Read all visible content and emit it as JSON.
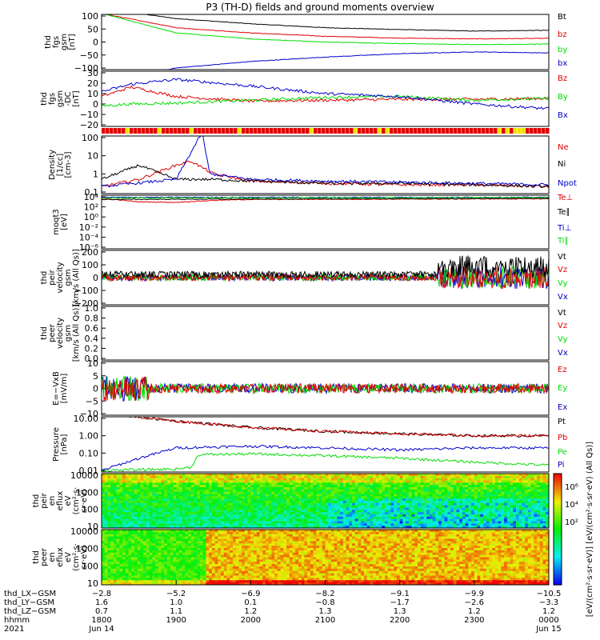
{
  "title": "P3 (TH-D) fields and ground moments overview",
  "colors": {
    "black": "#000000",
    "red": "#e00000",
    "green": "#00dd00",
    "blue": "#0000cc",
    "yellow": "#f0e000"
  },
  "chart_data": [
    {
      "id": "p1",
      "type": "line",
      "ylabel": [
        "thd",
        "fgs",
        "gsm",
        "[nT]"
      ],
      "yticks": [
        "100",
        "50",
        "0",
        "−50",
        "−100"
      ],
      "ylim": [
        -100,
        100
      ],
      "series": [
        {
          "name": "Bt",
          "color": "black",
          "x": [
            1800,
            1900,
            2000,
            2100,
            2200,
            2300,
            2400
          ],
          "y": [
            130,
            90,
            70,
            55,
            48,
            42,
            45
          ]
        },
        {
          "name": "bz",
          "color": "red",
          "x": [
            1800,
            1900,
            2000,
            2100,
            2200,
            2300,
            2400
          ],
          "y": [
            110,
            55,
            35,
            22,
            15,
            12,
            14
          ]
        },
        {
          "name": "by",
          "color": "green",
          "x": [
            1800,
            1900,
            2000,
            2100,
            2200,
            2300,
            2400
          ],
          "y": [
            110,
            35,
            12,
            0,
            -6,
            -10,
            -8
          ]
        },
        {
          "name": "bx",
          "color": "blue",
          "x": [
            1800,
            1900,
            2000,
            2100,
            2200,
            2300,
            2400
          ],
          "y": [
            -150,
            -100,
            -75,
            -58,
            -45,
            -38,
            -42
          ]
        }
      ]
    },
    {
      "id": "p2",
      "type": "line",
      "ylabel": [
        "thd",
        "fgs",
        "gsm",
        "-DC",
        "[nT]"
      ],
      "yticks": [
        "30",
        "20",
        "10",
        "0",
        "−10",
        "−20"
      ],
      "ylim": [
        -25,
        30
      ],
      "series": [
        {
          "name": "Bz",
          "color": "red",
          "x": [
            1800,
            1840,
            1900,
            2000,
            2100,
            2200,
            2300,
            2400
          ],
          "y": [
            5,
            15,
            5,
            0,
            1,
            2,
            2,
            3
          ]
        },
        {
          "name": "By",
          "color": "green",
          "x": [
            1800,
            1840,
            1900,
            2000,
            2100,
            2200,
            2300,
            2400
          ],
          "y": [
            -5,
            -3,
            -2,
            1,
            4,
            5,
            1,
            3
          ]
        },
        {
          "name": "Bx",
          "color": "blue",
          "x": [
            1800,
            1840,
            1900,
            2000,
            2100,
            2200,
            2300,
            2400
          ],
          "y": [
            10,
            18,
            23,
            16,
            8,
            5,
            -3,
            -8
          ]
        }
      ]
    },
    {
      "id": "p3",
      "type": "line",
      "ylabel": [
        "Density",
        "[1/cc]",
        "[cm-3]"
      ],
      "yticks": [
        "100",
        "10",
        "1",
        "0.1"
      ],
      "scale": "log",
      "series": [
        {
          "name": "Ne",
          "color": "red",
          "x": [
            1800,
            1850,
            1900,
            1920,
            1950,
            2000,
            2100,
            2200,
            2300,
            2400
          ],
          "y": [
            0.2,
            0.5,
            3,
            5,
            1,
            0.4,
            0.3,
            0.25,
            0.25,
            0.2
          ]
        },
        {
          "name": "Ni",
          "color": "black",
          "x": [
            1800,
            1850,
            1900,
            1950,
            2000,
            2100,
            2200,
            2300,
            2400
          ],
          "y": [
            0.5,
            3,
            0.5,
            0.5,
            0.4,
            0.3,
            0.3,
            0.25,
            0.2
          ]
        },
        {
          "name": "Npot",
          "color": "blue",
          "x": [
            1800,
            1900,
            1935,
            1945,
            2000,
            2100,
            2200,
            2300,
            2400
          ],
          "y": [
            0.2,
            0.5,
            200,
            1,
            0.5,
            0.4,
            0.35,
            0.3,
            0.25
          ]
        }
      ]
    },
    {
      "id": "p4",
      "type": "line",
      "ylabel": [
        "moqt3",
        "[eV]"
      ],
      "yticks": [
        "10⁴",
        "10²",
        "10⁰",
        "10⁻²",
        "10⁻⁴",
        "10⁻⁶"
      ],
      "scale": "log",
      "series": [
        {
          "name": "Te⊥",
          "color": "red",
          "x": [
            1800,
            1850,
            1900,
            1950,
            2000,
            2400
          ],
          "y": [
            5000,
            1000,
            800,
            2000,
            3000,
            4000
          ]
        },
        {
          "name": "Te∥",
          "color": "black",
          "x": [
            1800,
            2400
          ],
          "y": [
            3000,
            5000
          ]
        },
        {
          "name": "Ti⊥",
          "color": "blue",
          "x": [
            1800,
            2400
          ],
          "y": [
            8000,
            8000
          ]
        },
        {
          "name": "Ti∥",
          "color": "green",
          "x": [
            1800,
            2400
          ],
          "y": [
            6000,
            7000
          ]
        }
      ]
    },
    {
      "id": "p5",
      "type": "line",
      "ylabel": [
        "thd",
        "peir",
        "velocity",
        "gsm",
        "[km/s (All Qs)]"
      ],
      "yticks": [
        "200",
        "100",
        "0",
        "−100",
        "−200"
      ],
      "ylim": [
        -200,
        200
      ],
      "series": [
        {
          "name": "Vt",
          "color": "black"
        },
        {
          "name": "Vz",
          "color": "red"
        },
        {
          "name": "Vy",
          "color": "green"
        },
        {
          "name": "Vx",
          "color": "blue"
        }
      ]
    },
    {
      "id": "p6",
      "type": "line",
      "ylabel": [
        "thd",
        "peer",
        "velocity",
        "gsm",
        "[km/s (All Qs)]"
      ],
      "yticks": [
        "1.0",
        "0.8",
        "0.6",
        "0.4",
        "0.2",
        "0.0"
      ],
      "ylim": [
        0,
        1
      ],
      "series": [
        {
          "name": "Vt",
          "color": "black"
        },
        {
          "name": "Vz",
          "color": "red"
        },
        {
          "name": "Vy",
          "color": "green"
        },
        {
          "name": "Vx",
          "color": "blue"
        }
      ]
    },
    {
      "id": "p7",
      "type": "line",
      "ylabel": [
        "E=−VxB",
        "[mV/m]"
      ],
      "yticks": [
        "10",
        "5",
        "0",
        "−5",
        "−10"
      ],
      "ylim": [
        -10,
        10
      ],
      "series": [
        {
          "name": "Ez",
          "color": "red"
        },
        {
          "name": "Ey",
          "color": "green"
        },
        {
          "name": "Ex",
          "color": "blue"
        }
      ]
    },
    {
      "id": "p8",
      "type": "line",
      "ylabel": [
        "Pressure",
        "[nPa]"
      ],
      "yticks": [
        "10.00",
        "1.00",
        "0.10",
        "0.01"
      ],
      "scale": "log",
      "series": [
        {
          "name": "Pt",
          "color": "black",
          "x": [
            1800,
            1850,
            1900,
            2000,
            2100,
            2200,
            2300,
            2400
          ],
          "y": [
            20,
            12,
            7,
            3,
            1.8,
            1.3,
            1.0,
            1.0
          ]
        },
        {
          "name": "Pb",
          "color": "red",
          "x": [
            1800,
            1850,
            1900,
            2000,
            2100,
            2200,
            2300,
            2400
          ],
          "y": [
            20,
            12,
            7,
            3,
            1.8,
            1.3,
            1.0,
            1.0
          ]
        },
        {
          "name": "Pe",
          "color": "green",
          "x": [
            1800,
            1900,
            1920,
            1930,
            2000,
            2100,
            2200,
            2300,
            2400
          ],
          "y": [
            0.01,
            0.012,
            0.015,
            0.08,
            0.09,
            0.07,
            0.05,
            0.03,
            0.02
          ]
        },
        {
          "name": "Pi",
          "color": "blue",
          "x": [
            1800,
            1850,
            1900,
            2000,
            2100,
            2200,
            2300,
            2400
          ],
          "y": [
            0.01,
            0.05,
            0.2,
            0.25,
            0.2,
            0.15,
            0.2,
            0.2
          ]
        }
      ]
    },
    {
      "id": "p9",
      "type": "heatmap",
      "ylabel": [
        "thd",
        "peir",
        "en",
        "eflux",
        "eV",
        "(cm²·s·",
        "sr·eV)"
      ],
      "yticks": [
        "10000",
        "1000",
        "100",
        "10"
      ]
    },
    {
      "id": "p10",
      "type": "heatmap",
      "ylabel": [
        "thd",
        "peer",
        "en",
        "eflux",
        "eV",
        "(cm²·s·",
        "sr·eV)"
      ],
      "yticks": [
        "10000",
        "1000",
        "100",
        "10"
      ]
    }
  ],
  "colorbar": {
    "label": "[eV/(cm²·s·sr·eV)] [eV/(cm²·s·sr·eV) (All Qs)]",
    "ticks": [
      "10⁶",
      "10⁴",
      "10²"
    ]
  },
  "xaxis": {
    "rows": [
      {
        "label": "thd_LX−GSM",
        "values": [
          "−2.8",
          "−5.2",
          "−6.9",
          "−8.2",
          "−9.1",
          "−9.9",
          "−10.5"
        ]
      },
      {
        "label": "thd_LY−GSM",
        "values": [
          "1.6",
          "1.0",
          "0.1",
          "−0.8",
          "−1.7",
          "−2.6",
          "−3.3"
        ]
      },
      {
        "label": "thd_LZ−GSM",
        "values": [
          "0.7",
          "1.1",
          "1.2",
          "1.3",
          "1.3",
          "1.2",
          "1.2"
        ]
      },
      {
        "label": "hhmm",
        "values": [
          "1800",
          "1900",
          "2000",
          "2100",
          "2200",
          "2300",
          "0000"
        ]
      },
      {
        "label": "2021",
        "values": [
          "Jun 14",
          "",
          "",
          "",
          "",
          "",
          "Jun 15"
        ]
      }
    ]
  }
}
